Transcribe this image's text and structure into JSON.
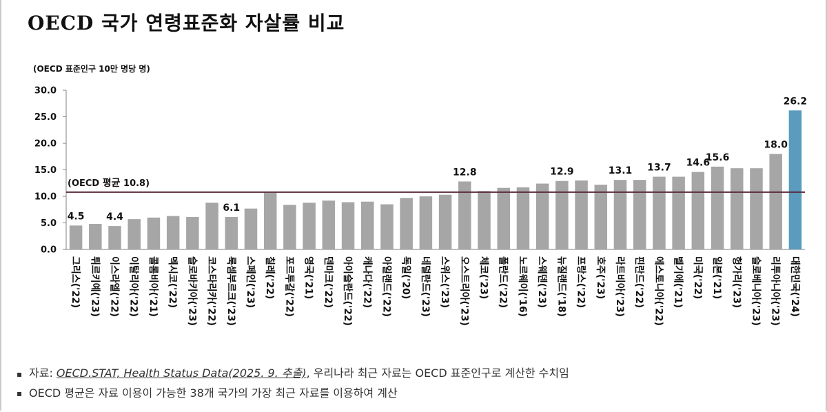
{
  "title": "OECD 국가 연령표준화 자살률 비교",
  "unit_label": "(OECD 표준인구 10만 명당 명)",
  "colors": {
    "bar": "#a6a6a6",
    "highlight": "#5b9bbd",
    "avg_line": "#5a2a3a",
    "axis": "#7f7f7f"
  },
  "chart_data": {
    "type": "bar",
    "categories": [
      "그리스('22)",
      "튀르키예('23)",
      "이스라엘('22)",
      "이탈리아('22)",
      "콜롬비아('21)",
      "멕시코('22)",
      "슬로바키아('23)",
      "코스타리카('22)",
      "룩셈부르크('23)",
      "스페인('23)",
      "칠레('22)",
      "포르투갈('22)",
      "영국('21)",
      "덴마크('22)",
      "아이슬란드('22)",
      "캐나다('22)",
      "아일랜드('22)",
      "독일('20)",
      "네덜란드('23)",
      "스위스('23)",
      "오스트리아('23)",
      "체코('23)",
      "폴란드('22)",
      "노르웨이('16)",
      "스웨덴('23)",
      "뉴질랜드('18)",
      "프랑스('22)",
      "호주('23)",
      "라트비아('23)",
      "핀란드('22)",
      "에스토니아('22)",
      "벨기에('21)",
      "미국('22)",
      "일본('21)",
      "헝가리('23)",
      "슬로베니아('23)",
      "리투아니아('23)",
      "대한민국('24)"
    ],
    "values": [
      4.5,
      4.8,
      4.4,
      5.7,
      6.0,
      6.3,
      6.1,
      8.8,
      6.1,
      7.7,
      10.7,
      8.4,
      8.8,
      9.2,
      8.9,
      9.0,
      8.5,
      9.7,
      10.0,
      10.3,
      12.8,
      11.0,
      11.6,
      11.7,
      12.4,
      12.9,
      13.0,
      12.2,
      13.1,
      13.1,
      13.7,
      13.7,
      14.6,
      15.6,
      15.3,
      15.3,
      18.0,
      26.2
    ],
    "data_labels": {
      "0": "4.5",
      "2": "4.4",
      "8": "6.1",
      "20": "12.8",
      "25": "12.9",
      "28": "13.1",
      "30": "13.7",
      "32": "14.6",
      "33": "15.6",
      "36": "18.0",
      "37": "26.2"
    },
    "highlight_index": 37,
    "average": {
      "value": 10.8,
      "label_prefix": "(OECD ",
      "label_bold": "평균",
      "label_suffix": " 10.8)"
    },
    "ylim": [
      0,
      30
    ],
    "yticks": [
      "0.0",
      "5.0",
      "10.0",
      "15.0",
      "20.0",
      "25.0",
      "30.0"
    ],
    "ytick_values": [
      0,
      5,
      10,
      15,
      20,
      25,
      30
    ],
    "grid": false,
    "legend": "none"
  },
  "notes": {
    "line1_prefix": "자료: ",
    "line1_source": "OECD.STAT, Health Status Data(2025. 9. 추출)",
    "line1_suffix": ", 우리나라 최근 자료는 OECD 표준인구로 계산한 수치임",
    "line2": "OECD 평균은 자료 이용이 가능한 38개 국가의 가장 최근 자료를 이용하여 계산"
  },
  "bullet_symbol": "▪"
}
